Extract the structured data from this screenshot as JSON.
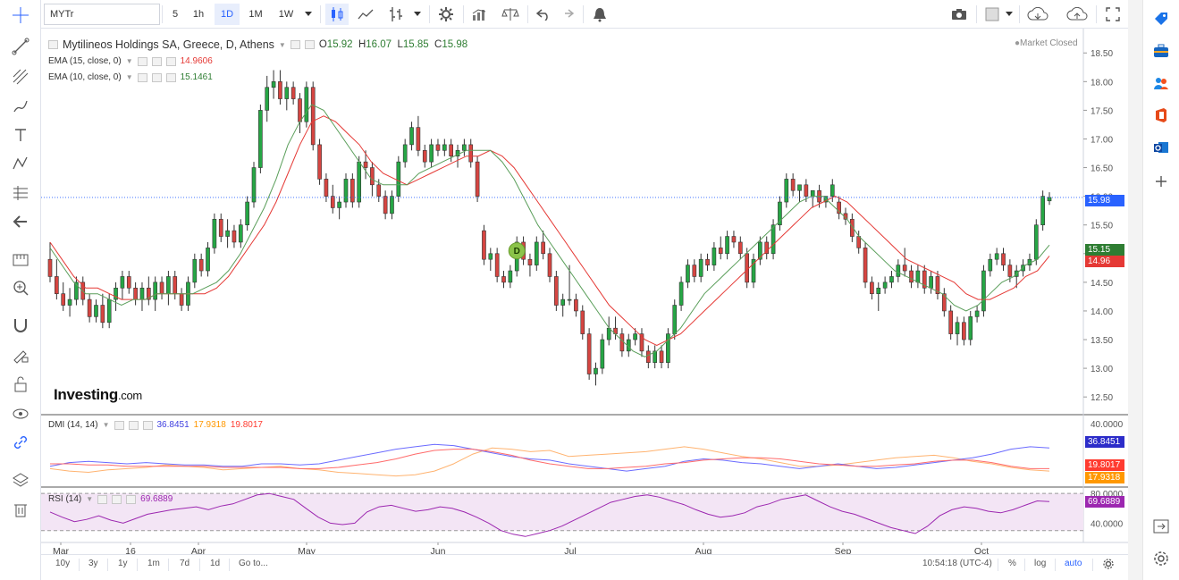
{
  "toolbar": {
    "symbol": "MYTr",
    "intervals": [
      "5",
      "1h",
      "1D",
      "1M",
      "1W"
    ],
    "active_interval": "1D"
  },
  "header": {
    "title": "Mytilineos Holdings SA, Greece, D, Athens",
    "open_label": "O",
    "open": "15.92",
    "high_label": "H",
    "high": "16.07",
    "low_label": "L",
    "low": "15.85",
    "close_label": "C",
    "close": "15.98",
    "market_status": "Market Closed"
  },
  "indicators": {
    "ema15": {
      "label": "EMA (15, close, 0)",
      "value": "14.9606",
      "color": "#e53935"
    },
    "ema10": {
      "label": "EMA (10, close, 0)",
      "value": "15.1461",
      "color": "#2e7d32"
    },
    "dmi": {
      "label": "DMI (14, 14)",
      "plus": "36.8451",
      "minus": "17.9318",
      "adx": "19.8017",
      "plus_color": "#3f3fe0",
      "minus_color": "#ff9800",
      "adx_color": "#ff3b30"
    },
    "rsi": {
      "label": "RSI (14)",
      "value": "69.6889",
      "color": "#9c27b0"
    }
  },
  "price_tags": {
    "last": "15.98",
    "ema10": "15.15",
    "ema15": "14.96",
    "dmi_plus": "36.8451",
    "dmi_adx": "19.8017",
    "dmi_minus": "17.9318",
    "rsi": "69.6889"
  },
  "logo": {
    "main": "Investing",
    "suffix": ".com"
  },
  "event_marker": "D",
  "bottom": {
    "ranges": [
      "10y",
      "3y",
      "1y",
      "1m",
      "7d",
      "1d"
    ],
    "goto": "Go to...",
    "time": "10:54:18 (UTC-4)",
    "percent": "%",
    "log": "log",
    "auto": "auto"
  },
  "chart_data": {
    "type": "candlestick",
    "price_axis": {
      "ticks": [
        "18.50",
        "18.00",
        "17.50",
        "17.00",
        "16.50",
        "16.00",
        "15.50",
        "15.00",
        "14.50",
        "14.00",
        "13.50",
        "13.00",
        "12.50"
      ],
      "ylim": [
        12.3,
        18.8
      ]
    },
    "x_labels": [
      "Mar",
      "16",
      "Apr",
      "May",
      "Jun",
      "Jul",
      "Aug",
      "Sep",
      "Oct"
    ],
    "candles": [
      [
        14.9,
        15.2,
        14.5,
        14.6
      ],
      [
        14.6,
        14.9,
        14.2,
        14.3
      ],
      [
        14.3,
        14.5,
        14.0,
        14.1
      ],
      [
        14.1,
        14.4,
        13.9,
        14.2
      ],
      [
        14.2,
        14.6,
        14.1,
        14.5
      ],
      [
        14.5,
        14.6,
        14.1,
        14.2
      ],
      [
        14.2,
        14.3,
        13.8,
        13.9
      ],
      [
        13.9,
        14.2,
        13.8,
        14.1
      ],
      [
        14.1,
        14.3,
        13.7,
        13.8
      ],
      [
        13.8,
        14.3,
        13.7,
        14.2
      ],
      [
        14.2,
        14.5,
        14.0,
        14.4
      ],
      [
        14.4,
        14.7,
        14.2,
        14.6
      ],
      [
        14.6,
        14.7,
        14.3,
        14.4
      ],
      [
        14.4,
        14.5,
        14.1,
        14.2
      ],
      [
        14.2,
        14.5,
        14.0,
        14.4
      ],
      [
        14.4,
        14.6,
        14.1,
        14.2
      ],
      [
        14.2,
        14.6,
        14.0,
        14.5
      ],
      [
        14.5,
        14.6,
        14.2,
        14.3
      ],
      [
        14.3,
        14.7,
        14.1,
        14.6
      ],
      [
        14.6,
        14.7,
        14.2,
        14.3
      ],
      [
        14.3,
        14.4,
        14.0,
        14.1
      ],
      [
        14.1,
        14.6,
        14.0,
        14.5
      ],
      [
        14.5,
        15.0,
        14.4,
        14.9
      ],
      [
        14.9,
        15.0,
        14.6,
        14.7
      ],
      [
        14.7,
        15.2,
        14.6,
        15.1
      ],
      [
        15.1,
        15.7,
        15.0,
        15.6
      ],
      [
        15.6,
        15.7,
        15.2,
        15.3
      ],
      [
        15.3,
        15.6,
        15.1,
        15.4
      ],
      [
        15.4,
        15.5,
        15.1,
        15.2
      ],
      [
        15.2,
        15.6,
        15.1,
        15.5
      ],
      [
        15.5,
        16.0,
        15.4,
        15.9
      ],
      [
        15.9,
        16.6,
        15.8,
        16.5
      ],
      [
        16.5,
        17.6,
        16.4,
        17.5
      ],
      [
        17.5,
        18.1,
        17.3,
        17.9
      ],
      [
        17.9,
        18.2,
        17.7,
        18.0
      ],
      [
        18.0,
        18.2,
        17.6,
        17.7
      ],
      [
        17.7,
        18.0,
        17.5,
        17.9
      ],
      [
        17.9,
        18.0,
        17.6,
        17.7
      ],
      [
        17.7,
        17.8,
        17.1,
        17.3
      ],
      [
        17.3,
        18.0,
        17.2,
        17.9
      ],
      [
        17.9,
        18.0,
        16.8,
        16.9
      ],
      [
        16.9,
        17.0,
        16.2,
        16.3
      ],
      [
        16.3,
        16.4,
        15.9,
        16.0
      ],
      [
        16.0,
        16.2,
        15.7,
        15.8
      ],
      [
        15.8,
        16.0,
        15.6,
        15.9
      ],
      [
        15.9,
        16.4,
        15.8,
        16.3
      ],
      [
        16.3,
        16.4,
        15.8,
        15.9
      ],
      [
        15.9,
        16.7,
        15.8,
        16.6
      ],
      [
        16.6,
        16.8,
        16.3,
        16.5
      ],
      [
        16.5,
        16.6,
        16.0,
        16.2
      ],
      [
        16.2,
        16.3,
        15.9,
        16.0
      ],
      [
        16.0,
        16.1,
        15.6,
        15.7
      ],
      [
        15.7,
        16.1,
        15.6,
        16.0
      ],
      [
        16.0,
        16.7,
        15.9,
        16.6
      ],
      [
        16.6,
        17.0,
        16.5,
        16.9
      ],
      [
        16.9,
        17.3,
        16.8,
        17.2
      ],
      [
        17.2,
        17.4,
        16.7,
        16.8
      ],
      [
        16.8,
        16.9,
        16.5,
        16.6
      ],
      [
        16.6,
        17.0,
        16.5,
        16.9
      ],
      [
        16.9,
        17.0,
        16.7,
        16.8
      ],
      [
        16.8,
        17.0,
        16.7,
        16.9
      ],
      [
        16.9,
        17.0,
        16.6,
        16.7
      ],
      [
        16.7,
        16.9,
        16.5,
        16.8
      ],
      [
        16.8,
        17.0,
        16.7,
        16.9
      ],
      [
        16.9,
        17.0,
        16.5,
        16.6
      ],
      [
        16.6,
        16.7,
        15.9,
        16.0
      ],
      [
        15.4,
        15.5,
        14.8,
        14.9
      ],
      [
        14.9,
        15.1,
        14.7,
        15.0
      ],
      [
        15.0,
        15.1,
        14.5,
        14.6
      ],
      [
        14.6,
        14.7,
        14.4,
        14.5
      ],
      [
        14.5,
        14.8,
        14.4,
        14.7
      ],
      [
        14.7,
        15.3,
        14.6,
        15.2
      ],
      [
        15.2,
        15.3,
        14.8,
        14.9
      ],
      [
        14.9,
        15.0,
        14.6,
        14.8
      ],
      [
        14.8,
        15.3,
        14.7,
        15.2
      ],
      [
        15.2,
        15.4,
        14.9,
        15.0
      ],
      [
        15.0,
        15.1,
        14.5,
        14.6
      ],
      [
        14.6,
        14.7,
        14.0,
        14.1
      ],
      [
        14.1,
        14.3,
        13.9,
        14.2
      ],
      [
        14.2,
        14.8,
        14.1,
        14.2
      ],
      [
        14.2,
        14.3,
        13.9,
        14.0
      ],
      [
        14.0,
        14.1,
        13.5,
        13.6
      ],
      [
        13.6,
        13.7,
        12.8,
        12.9
      ],
      [
        12.9,
        13.1,
        12.7,
        13.0
      ],
      [
        13.0,
        13.6,
        12.9,
        13.5
      ],
      [
        13.5,
        13.9,
        13.4,
        13.7
      ],
      [
        13.7,
        13.9,
        13.5,
        13.6
      ],
      [
        13.6,
        13.7,
        13.2,
        13.3
      ],
      [
        13.3,
        13.6,
        13.2,
        13.5
      ],
      [
        13.5,
        13.7,
        13.4,
        13.6
      ],
      [
        13.6,
        13.7,
        13.2,
        13.3
      ],
      [
        13.3,
        13.4,
        13.0,
        13.1
      ],
      [
        13.1,
        13.4,
        13.0,
        13.3
      ],
      [
        13.3,
        13.4,
        13.0,
        13.1
      ],
      [
        13.1,
        13.7,
        13.0,
        13.6
      ],
      [
        13.6,
        14.2,
        13.5,
        14.1
      ],
      [
        14.1,
        14.6,
        14.0,
        14.5
      ],
      [
        14.5,
        14.9,
        14.4,
        14.8
      ],
      [
        14.8,
        14.9,
        14.5,
        14.6
      ],
      [
        14.6,
        15.0,
        14.5,
        14.9
      ],
      [
        14.9,
        15.0,
        14.7,
        14.8
      ],
      [
        14.8,
        15.2,
        14.7,
        15.1
      ],
      [
        15.1,
        15.3,
        14.9,
        15.0
      ],
      [
        15.0,
        15.4,
        14.9,
        15.3
      ],
      [
        15.3,
        15.4,
        15.1,
        15.2
      ],
      [
        15.2,
        15.3,
        14.9,
        15.0
      ],
      [
        15.0,
        15.1,
        14.4,
        14.5
      ],
      [
        14.5,
        15.0,
        14.4,
        14.9
      ],
      [
        14.9,
        15.3,
        14.8,
        15.2
      ],
      [
        15.2,
        15.3,
        14.9,
        15.0
      ],
      [
        15.0,
        15.6,
        14.9,
        15.5
      ],
      [
        15.5,
        16.0,
        15.4,
        15.9
      ],
      [
        15.9,
        16.4,
        15.8,
        16.3
      ],
      [
        16.3,
        16.4,
        16.0,
        16.1
      ],
      [
        16.1,
        16.2,
        15.9,
        16.2
      ],
      [
        16.2,
        16.3,
        15.9,
        16.0
      ],
      [
        16.0,
        16.1,
        15.8,
        16.1
      ],
      [
        16.1,
        16.2,
        15.8,
        15.9
      ],
      [
        15.9,
        16.0,
        15.8,
        16.0
      ],
      [
        16.0,
        16.3,
        15.9,
        16.2
      ],
      [
        15.9,
        16.0,
        15.6,
        15.7
      ],
      [
        15.7,
        15.8,
        15.5,
        15.6
      ],
      [
        15.6,
        15.7,
        15.2,
        15.3
      ],
      [
        15.3,
        15.4,
        15.0,
        15.1
      ],
      [
        15.1,
        15.2,
        14.4,
        14.5
      ],
      [
        14.5,
        14.6,
        14.2,
        14.3
      ],
      [
        14.3,
        14.5,
        14.0,
        14.4
      ],
      [
        14.4,
        14.6,
        14.3,
        14.5
      ],
      [
        14.5,
        14.7,
        14.4,
        14.6
      ],
      [
        14.6,
        14.9,
        14.5,
        14.8
      ],
      [
        14.8,
        15.1,
        14.6,
        14.7
      ],
      [
        14.7,
        14.8,
        14.4,
        14.5
      ],
      [
        14.5,
        14.8,
        14.4,
        14.7
      ],
      [
        14.7,
        14.8,
        14.3,
        14.4
      ],
      [
        14.4,
        14.7,
        14.3,
        14.6
      ],
      [
        14.6,
        14.7,
        14.2,
        14.3
      ],
      [
        14.3,
        14.4,
        13.9,
        14.0
      ],
      [
        14.0,
        14.1,
        13.5,
        13.6
      ],
      [
        13.6,
        13.9,
        13.4,
        13.8
      ],
      [
        13.8,
        13.9,
        13.4,
        13.5
      ],
      [
        13.5,
        14.0,
        13.4,
        13.9
      ],
      [
        13.9,
        14.1,
        13.8,
        14.0
      ],
      [
        14.0,
        14.8,
        13.9,
        14.7
      ],
      [
        14.7,
        15.0,
        14.6,
        14.9
      ],
      [
        14.9,
        15.1,
        14.8,
        15.0
      ],
      [
        15.0,
        15.1,
        14.7,
        14.8
      ],
      [
        14.8,
        14.9,
        14.5,
        14.6
      ],
      [
        14.6,
        14.8,
        14.4,
        14.7
      ],
      [
        14.7,
        14.9,
        14.6,
        14.8
      ],
      [
        14.8,
        15.0,
        14.7,
        14.9
      ],
      [
        14.9,
        15.6,
        14.8,
        15.5
      ],
      [
        15.5,
        16.1,
        15.4,
        16.0
      ],
      [
        15.92,
        16.07,
        15.85,
        15.98
      ]
    ],
    "dmi_series": {
      "plus_di": [
        22,
        25,
        26,
        25,
        24,
        25,
        24,
        23,
        23,
        22,
        22,
        24,
        24,
        23,
        24,
        27,
        30,
        33,
        36,
        38,
        40,
        39,
        36,
        33,
        30,
        28,
        27,
        24,
        22,
        20,
        18,
        20,
        22,
        26,
        28,
        27,
        25,
        24,
        22,
        20,
        22,
        24,
        22,
        20,
        21,
        23,
        25,
        27,
        29,
        32,
        36,
        38,
        37
      ],
      "minus_di": [
        20,
        18,
        17,
        19,
        20,
        21,
        23,
        22,
        21,
        19,
        20,
        21,
        22,
        20,
        19,
        17,
        16,
        15,
        14,
        15,
        18,
        24,
        32,
        37,
        36,
        34,
        35,
        30,
        31,
        32,
        33,
        34,
        36,
        38,
        36,
        33,
        30,
        28,
        25,
        22,
        22,
        23,
        25,
        27,
        29,
        30,
        31,
        29,
        26,
        24,
        21,
        19,
        18
      ],
      "adx": [
        24,
        24,
        23,
        23,
        22,
        22,
        22,
        22,
        22,
        21,
        21,
        21,
        21,
        20,
        20,
        21,
        23,
        25,
        28,
        32,
        35,
        36,
        36,
        34,
        31,
        27,
        24,
        22,
        20,
        20,
        21,
        22,
        24,
        25,
        27,
        28,
        29,
        29,
        28,
        26,
        24,
        23,
        22,
        22,
        23,
        24,
        26,
        27,
        27,
        25,
        22,
        20,
        20
      ]
    },
    "rsi_series": [
      55,
      48,
      42,
      45,
      50,
      44,
      40,
      46,
      52,
      55,
      58,
      60,
      62,
      58,
      63,
      66,
      72,
      78,
      80,
      76,
      72,
      60,
      48,
      40,
      38,
      40,
      55,
      62,
      64,
      60,
      56,
      58,
      62,
      60,
      55,
      48,
      40,
      30,
      25,
      22,
      26,
      30,
      36,
      44,
      52,
      60,
      68,
      72,
      76,
      78,
      75,
      70,
      65,
      58,
      52,
      48,
      50,
      54,
      62,
      66,
      72,
      75,
      78,
      70,
      62,
      56,
      52,
      46,
      40,
      34,
      30,
      26,
      36,
      50,
      58,
      62,
      60,
      56,
      54,
      58,
      64,
      70,
      69
    ],
    "ema15": [
      15.2,
      14.9,
      14.6,
      14.4,
      14.4,
      14.3,
      14.2,
      14.2,
      14.2,
      14.3,
      14.3,
      14.3,
      14.3,
      14.3,
      14.4,
      14.6,
      14.9,
      15.2,
      15.5,
      15.9,
      16.4,
      16.9,
      17.3,
      17.4,
      17.3,
      17.1,
      16.9,
      16.6,
      16.4,
      16.3,
      16.2,
      16.3,
      16.4,
      16.5,
      16.6,
      16.7,
      16.7,
      16.8,
      16.7,
      16.5,
      16.2,
      15.9,
      15.6,
      15.3,
      15.0,
      14.7,
      14.4,
      14.1,
      13.9,
      13.7,
      13.5,
      13.4,
      13.5,
      13.6,
      13.8,
      14.0,
      14.2,
      14.4,
      14.6,
      14.8,
      15.0,
      15.2,
      15.4,
      15.6,
      15.8,
      15.9,
      16.0,
      15.9,
      15.7,
      15.5,
      15.3,
      15.1,
      14.9,
      14.8,
      14.7,
      14.6,
      14.5,
      14.3,
      14.2,
      14.2,
      14.3,
      14.4,
      14.6,
      14.7,
      14.96
    ],
    "ema10": [
      15.1,
      14.8,
      14.5,
      14.3,
      14.3,
      14.2,
      14.1,
      14.2,
      14.2,
      14.3,
      14.3,
      14.3,
      14.3,
      14.4,
      14.5,
      14.7,
      15.0,
      15.4,
      15.8,
      16.3,
      16.9,
      17.3,
      17.6,
      17.5,
      17.2,
      16.9,
      16.6,
      16.3,
      16.2,
      16.2,
      16.2,
      16.4,
      16.5,
      16.6,
      16.7,
      16.8,
      16.8,
      16.8,
      16.6,
      16.3,
      15.9,
      15.5,
      15.2,
      14.9,
      14.6,
      14.3,
      14.0,
      13.7,
      13.5,
      13.3,
      13.2,
      13.3,
      13.5,
      13.7,
      14.0,
      14.3,
      14.5,
      14.7,
      14.9,
      15.1,
      15.3,
      15.5,
      15.7,
      15.9,
      16.0,
      16.0,
      15.8,
      15.6,
      15.3,
      15.1,
      14.9,
      14.7,
      14.6,
      14.5,
      14.4,
      14.3,
      14.1,
      14.0,
      14.1,
      14.3,
      14.5,
      14.6,
      14.8,
      14.9,
      15.15
    ]
  }
}
